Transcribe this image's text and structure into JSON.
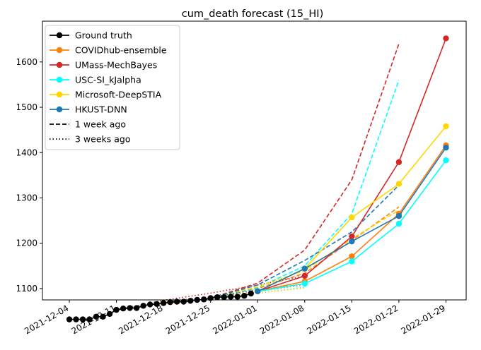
{
  "chart_data": {
    "type": "line",
    "title": "cum_death forecast (15_HI)",
    "xlabel": "",
    "ylabel": "",
    "x_range": [
      "2021-11-30",
      "2022-02-01"
    ],
    "ylim": [
      1075,
      1690
    ],
    "x_ticks": [
      "2021-12-04",
      "2021-12-11",
      "2021-12-18",
      "2021-12-25",
      "2022-01-01",
      "2022-01-08",
      "2022-01-15",
      "2022-01-22",
      "2022-01-29"
    ],
    "y_ticks": [
      1100,
      1200,
      1300,
      1400,
      1500,
      1600
    ],
    "ground_truth": {
      "name": "Ground truth",
      "color": "#000000",
      "x": [
        "2021-12-04",
        "2021-12-05",
        "2021-12-06",
        "2021-12-07",
        "2021-12-08",
        "2021-12-09",
        "2021-12-10",
        "2021-12-11",
        "2021-12-12",
        "2021-12-13",
        "2021-12-14",
        "2021-12-15",
        "2021-12-16",
        "2021-12-17",
        "2021-12-18",
        "2021-12-19",
        "2021-12-20",
        "2021-12-21",
        "2021-12-22",
        "2021-12-23",
        "2021-12-24",
        "2021-12-25",
        "2021-12-26",
        "2021-12-27",
        "2021-12-28",
        "2021-12-29",
        "2021-12-30",
        "2021-12-31"
      ],
      "values": [
        1032,
        1032,
        1032,
        1032,
        1038,
        1038,
        1044,
        1053,
        1056,
        1057,
        1057,
        1062,
        1065,
        1066,
        1068,
        1070,
        1071,
        1071,
        1073,
        1075,
        1076,
        1079,
        1081,
        1081,
        1082,
        1082,
        1084,
        1089
      ]
    },
    "series": [
      {
        "name": "COVIDhub-ensemble",
        "color": "#ff7f0e",
        "current": {
          "x": [
            "2022-01-01",
            "2022-01-08",
            "2022-01-15",
            "2022-01-22",
            "2022-01-29"
          ],
          "values": [
            1094,
            1116,
            1171,
            1265,
            1416
          ]
        },
        "one_week": {
          "x": [
            "2021-12-25",
            "2022-01-01",
            "2022-01-08",
            "2022-01-15",
            "2022-01-22"
          ],
          "values": [
            1079,
            1100,
            1134,
            1206,
            1280
          ]
        },
        "three_weeks": {
          "x": [
            "2021-12-11",
            "2021-12-18",
            "2021-12-25",
            "2022-01-01",
            "2022-01-08"
          ],
          "values": [
            1053,
            1068,
            1080,
            1094,
            1108
          ]
        }
      },
      {
        "name": "UMass-MechBayes",
        "color": "#d62728",
        "current": {
          "x": [
            "2022-01-01",
            "2022-01-08",
            "2022-01-15",
            "2022-01-22",
            "2022-01-29"
          ],
          "values": [
            1094,
            1128,
            1215,
            1379,
            1652
          ]
        },
        "one_week": {
          "x": [
            "2021-12-25",
            "2022-01-01",
            "2022-01-08",
            "2022-01-15",
            "2022-01-22"
          ],
          "values": [
            1079,
            1112,
            1185,
            1340,
            1640
          ]
        },
        "three_weeks": {
          "x": [
            "2021-12-11",
            "2021-12-18",
            "2021-12-25",
            "2022-01-01",
            "2022-01-08"
          ],
          "values": [
            1053,
            1074,
            1090,
            1108,
            1128
          ]
        }
      },
      {
        "name": "USC-SI_kJalpha",
        "color": "#00ffff",
        "current": {
          "x": [
            "2022-01-01",
            "2022-01-08",
            "2022-01-15",
            "2022-01-22",
            "2022-01-29"
          ],
          "values": [
            1094,
            1111,
            1160,
            1243,
            1383
          ]
        },
        "one_week": {
          "x": [
            "2021-12-25",
            "2022-01-01",
            "2022-01-08",
            "2022-01-15",
            "2022-01-22"
          ],
          "values": [
            1079,
            1102,
            1150,
            1265,
            1560
          ]
        },
        "three_weeks": {
          "x": [
            "2021-12-11",
            "2021-12-18",
            "2021-12-25",
            "2022-01-01",
            "2022-01-08"
          ],
          "values": [
            1053,
            1067,
            1078,
            1090,
            1103
          ]
        }
      },
      {
        "name": "Microsoft-DeepSTIA",
        "color": "#ffd700",
        "current": {
          "x": [
            "2022-01-01",
            "2022-01-08",
            "2022-01-15",
            "2022-01-22",
            "2022-01-29"
          ],
          "values": [
            1094,
            1144,
            1257,
            1331,
            1458
          ]
        },
        "one_week": {
          "x": [
            "2021-12-25",
            "2022-01-01",
            "2022-01-08",
            "2022-01-15",
            "2022-01-22"
          ],
          "values": [
            1079,
            1104,
            1140,
            1210,
            1273
          ]
        },
        "three_weeks": {
          "x": [
            "2021-12-11",
            "2021-12-18",
            "2021-12-25",
            "2022-01-01",
            "2022-01-08"
          ],
          "values": [
            1053,
            1066,
            1077,
            1090,
            1101
          ]
        }
      },
      {
        "name": "HKUST-DNN",
        "color": "#1f77b4",
        "current": {
          "x": [
            "2022-01-01",
            "2022-01-08",
            "2022-01-15",
            "2022-01-22",
            "2022-01-29"
          ],
          "values": [
            1094,
            1144,
            1204,
            1260,
            1411
          ]
        },
        "one_week": {
          "x": [
            "2021-12-25",
            "2022-01-01",
            "2022-01-08",
            "2022-01-15",
            "2022-01-22"
          ],
          "values": [
            1079,
            1108,
            1162,
            1225,
            1328
          ]
        },
        "three_weeks": {
          "x": [
            "2021-12-11",
            "2021-12-18",
            "2021-12-25",
            "2022-01-01",
            "2022-01-08"
          ],
          "values": [
            1053,
            1070,
            1082,
            1097,
            1110
          ]
        }
      }
    ],
    "legend": {
      "position": "top-left",
      "entries": [
        {
          "label": "Ground truth",
          "color": "#000000",
          "style": "solid-marker"
        },
        {
          "label": "COVIDhub-ensemble",
          "color": "#ff7f0e",
          "style": "solid-marker"
        },
        {
          "label": "UMass-MechBayes",
          "color": "#d62728",
          "style": "solid-marker"
        },
        {
          "label": "USC-SI_kJalpha",
          "color": "#00ffff",
          "style": "solid-marker"
        },
        {
          "label": "Microsoft-DeepSTIA",
          "color": "#ffd700",
          "style": "solid-marker"
        },
        {
          "label": "HKUST-DNN",
          "color": "#1f77b4",
          "style": "solid-marker"
        },
        {
          "label": "1 week ago",
          "color": "#000000",
          "style": "dashed"
        },
        {
          "label": "3 weeks ago",
          "color": "#000000",
          "style": "dotted"
        }
      ]
    }
  }
}
